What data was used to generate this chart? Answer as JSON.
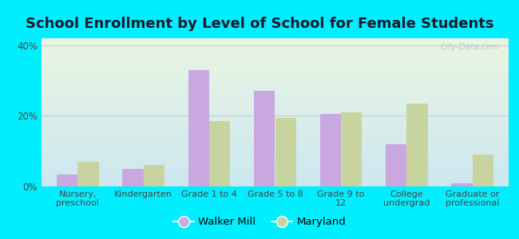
{
  "title": "School Enrollment by Level of School for Female Students",
  "categories": [
    "Nursery,\npreschool",
    "Kindergarten",
    "Grade 1 to 4",
    "Grade 5 to 8",
    "Grade 9 to\n12",
    "College\nundergrad",
    "Graduate or\nprofessional"
  ],
  "walker_mill": [
    3.5,
    5.0,
    33.0,
    27.0,
    20.5,
    12.0,
    1.0
  ],
  "maryland": [
    7.0,
    6.0,
    18.5,
    19.5,
    21.0,
    23.5,
    9.0
  ],
  "walker_mill_color": "#c9a8e0",
  "maryland_color": "#c8d4a0",
  "background_outer": "#00eeff",
  "background_inner_top": "#eaf5e2",
  "background_inner_bottom": "#cce8f0",
  "ylim": [
    0,
    42
  ],
  "yticks": [
    0,
    20,
    40
  ],
  "ytick_labels": [
    "0%",
    "20%",
    "40%"
  ],
  "bar_width": 0.32,
  "legend_labels": [
    "Walker Mill",
    "Maryland"
  ],
  "watermark": "City-Data.com",
  "title_fontsize": 13,
  "label_fontsize": 8,
  "tick_fontsize": 8.5,
  "title_color": "#1a1a2e",
  "tick_color": "#444444",
  "grid_color": "#cccccc"
}
